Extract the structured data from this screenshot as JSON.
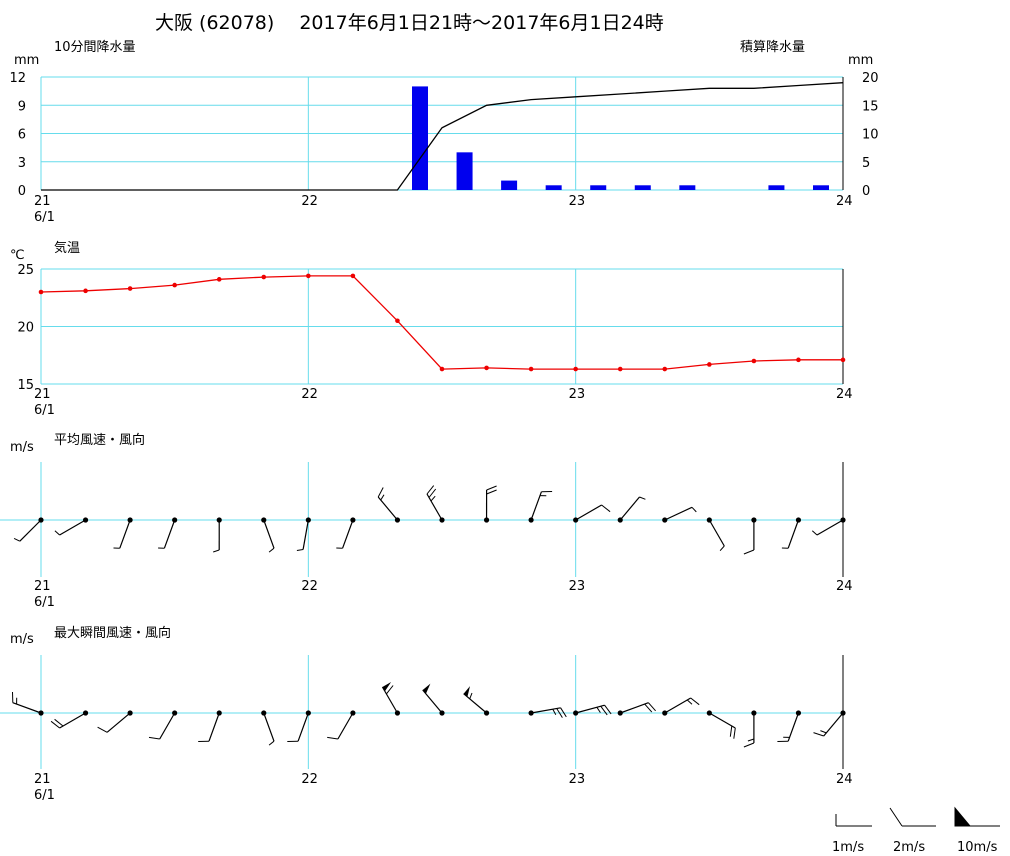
{
  "title": "大阪 (62078)　 2017年6月1日21時～2017年6月1日24時",
  "colors": {
    "grid": "#66dcec",
    "bar": "#0000ee",
    "temp": "#ee0000",
    "line": "#000000"
  },
  "x_ticks": [
    "21",
    "22",
    "23",
    "24"
  ],
  "x_date": "6/1",
  "precip": {
    "label_left": "10分間降水量",
    "label_right": "積算降水量",
    "unit_left": "mm",
    "unit_right": "mm",
    "ticks_left": [
      "0",
      "3",
      "6",
      "9",
      "12"
    ],
    "ticks_right": [
      "0",
      "5",
      "10",
      "15",
      "20"
    ]
  },
  "temp": {
    "label": "気温",
    "unit": "℃",
    "ticks": [
      "15",
      "20",
      "25"
    ]
  },
  "wind_avg": {
    "label": "平均風速・風向",
    "unit": "m/s"
  },
  "wind_max": {
    "label": "最大瞬間風速・風向",
    "unit": "m/s"
  },
  "legend": {
    "items": [
      "1m/s",
      "2m/s",
      "10m/s"
    ]
  },
  "chart_data": [
    {
      "type": "bar",
      "title": "10分間降水量",
      "x": [
        21.1667,
        21.3333,
        21.5,
        21.6667,
        21.8333,
        22.0,
        22.1667,
        22.3333,
        22.5,
        22.6667,
        22.8333,
        23.0,
        23.1667,
        23.3333,
        23.5,
        23.6667,
        23.8333,
        24.0
      ],
      "values": [
        0,
        0,
        0,
        0,
        0,
        0,
        0,
        0,
        11,
        4,
        1,
        0.5,
        0.5,
        0.5,
        0.5,
        0,
        0.5,
        0.5
      ],
      "ylabel": "mm",
      "ylim": [
        0,
        12
      ],
      "xlim": [
        21,
        24
      ]
    },
    {
      "type": "line",
      "title": "積算降水量",
      "x": [
        21.0,
        22.3333,
        22.5,
        22.6667,
        22.8333,
        23.0,
        23.1667,
        23.3333,
        23.5,
        23.6667,
        23.8333,
        24.0
      ],
      "values": [
        0,
        0,
        11,
        15,
        16,
        16.5,
        17,
        17.5,
        18,
        18,
        18.5,
        19
      ],
      "ylabel": "mm",
      "ylim": [
        0,
        20
      ],
      "xlim": [
        21,
        24
      ]
    },
    {
      "type": "line",
      "title": "気温",
      "x": [
        21.0,
        21.1667,
        21.3333,
        21.5,
        21.6667,
        21.8333,
        22.0,
        22.1667,
        22.3333,
        22.5,
        22.6667,
        22.8333,
        23.0,
        23.1667,
        23.3333,
        23.5,
        23.6667,
        23.8333,
        24.0
      ],
      "values": [
        23.0,
        23.1,
        23.3,
        23.6,
        24.1,
        24.3,
        24.4,
        24.4,
        20.5,
        16.3,
        16.4,
        16.3,
        16.3,
        16.3,
        16.3,
        16.7,
        17.0,
        17.1,
        17.1
      ],
      "ylabel": "℃",
      "ylim": [
        15,
        25
      ],
      "xlim": [
        21,
        24
      ]
    },
    {
      "type": "scatter",
      "title": "平均風速・風向",
      "x": [
        21.0,
        21.1667,
        21.3333,
        21.5,
        21.6667,
        21.8333,
        22.0,
        22.1667,
        22.3333,
        22.5,
        22.6667,
        22.8333,
        23.0,
        23.1667,
        23.3333,
        23.5,
        23.6667,
        23.8333,
        24.0
      ],
      "direction_deg": [
        225,
        240,
        200,
        200,
        180,
        160,
        190,
        200,
        320,
        330,
        0,
        20,
        60,
        40,
        65,
        150,
        180,
        200,
        240
      ],
      "speed_ms": [
        1,
        1,
        1,
        1,
        1,
        1,
        1,
        1,
        3,
        5,
        4,
        3,
        2,
        1,
        1,
        1,
        2,
        1,
        1
      ],
      "xlim": [
        21,
        24
      ]
    },
    {
      "type": "scatter",
      "title": "最大瞬間風速・風向",
      "x": [
        21.0,
        21.1667,
        21.3333,
        21.5,
        21.6667,
        21.8333,
        22.0,
        22.1667,
        22.3333,
        22.5,
        22.6667,
        22.8333,
        23.0,
        23.1667,
        23.3333,
        23.5,
        23.6667,
        23.8333,
        24.0
      ],
      "direction_deg": [
        290,
        240,
        230,
        210,
        200,
        160,
        200,
        210,
        330,
        320,
        310,
        80,
        75,
        70,
        60,
        120,
        180,
        200,
        220
      ],
      "speed_ms": [
        3,
        4,
        2,
        2,
        2,
        1,
        2,
        2,
        12,
        10,
        11,
        5,
        5,
        4,
        3,
        4,
        3,
        3,
        3
      ],
      "xlim": [
        21,
        24
      ]
    }
  ]
}
